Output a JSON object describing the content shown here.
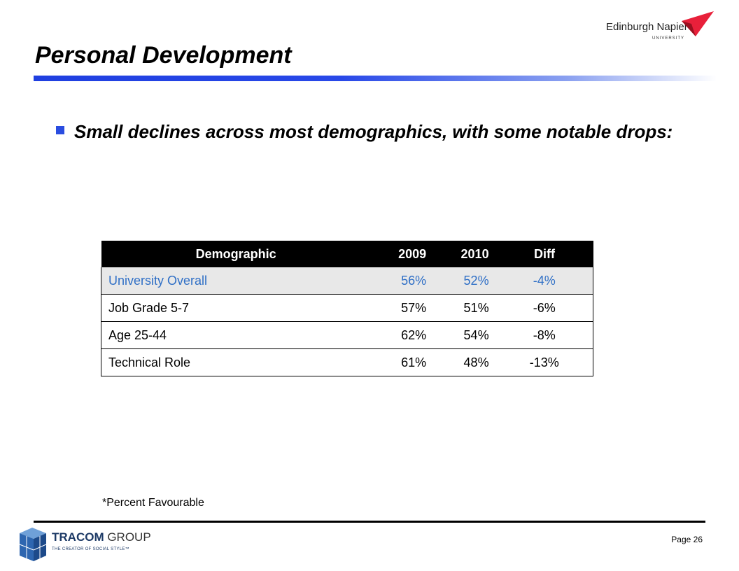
{
  "header": {
    "title": "Personal Development",
    "logo_name": "Edinburgh Napier",
    "logo_sub": "UNIVERSITY",
    "accent": "#2a4de0"
  },
  "bullet": {
    "text": "Small declines across most demographics, with some notable drops:"
  },
  "table": {
    "headers": [
      "Demographic",
      "2009",
      "2010",
      "Diff"
    ],
    "rows": [
      {
        "demographic": "University Overall",
        "y2009": "56%",
        "y2010": "52%",
        "diff": "-4%"
      },
      {
        "demographic": "Job Grade 5-7",
        "y2009": "57%",
        "y2010": "51%",
        "diff": "-6%"
      },
      {
        "demographic": "Age 25-44",
        "y2009": "62%",
        "y2010": "54%",
        "diff": "-8%"
      },
      {
        "demographic": "Technical Role",
        "y2009": "61%",
        "y2010": "48%",
        "diff": "-13%"
      }
    ],
    "highlight_color": "#2f6fc6"
  },
  "note": "*Percent Favourable",
  "footer": {
    "logo_name_bold": "TRACOM",
    "logo_name_light": " GROUP",
    "logo_tagline": "THE CREATOR OF SOCIAL STYLE™",
    "page_label": "Page 26"
  }
}
